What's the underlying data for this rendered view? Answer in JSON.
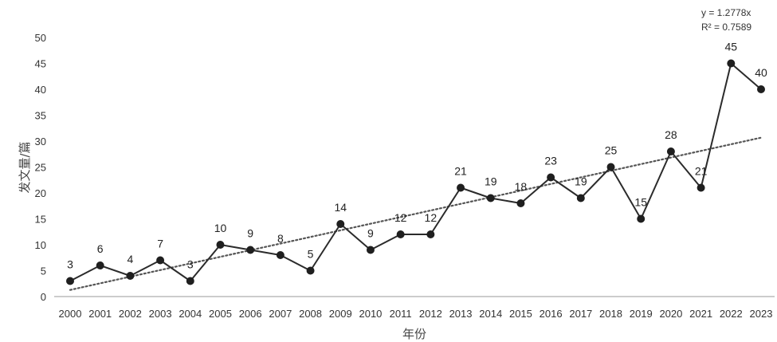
{
  "chart_data": {
    "type": "line",
    "xlabel": "年份",
    "ylabel": "发文量/篇",
    "ylim": [
      0,
      50
    ],
    "yticks": [
      0,
      5,
      10,
      15,
      20,
      25,
      30,
      35,
      40,
      45,
      50
    ],
    "grid": false,
    "categories": [
      "2000",
      "2001",
      "2002",
      "2003",
      "2004",
      "2005",
      "2006",
      "2007",
      "2008",
      "2009",
      "2010",
      "2011",
      "2012",
      "2013",
      "2014",
      "2015",
      "2016",
      "2017",
      "2018",
      "2019",
      "2020",
      "2021",
      "2022",
      "2023"
    ],
    "series": [
      {
        "values": [
          3,
          6,
          4,
          7,
          3,
          10,
          9,
          8,
          5,
          14,
          9,
          12,
          12,
          21,
          19,
          18,
          23,
          19,
          25,
          15,
          28,
          21,
          45,
          40
        ]
      }
    ],
    "trendline": {
      "style": "dotted",
      "equation": "y = 1.2778x",
      "r_squared": "R² = 0.7589",
      "slope": 1.2778
    },
    "colors": {
      "line": "#2b2b2b",
      "marker": "#1f1f1f",
      "trend": "#555555",
      "axis": "#999999"
    }
  }
}
